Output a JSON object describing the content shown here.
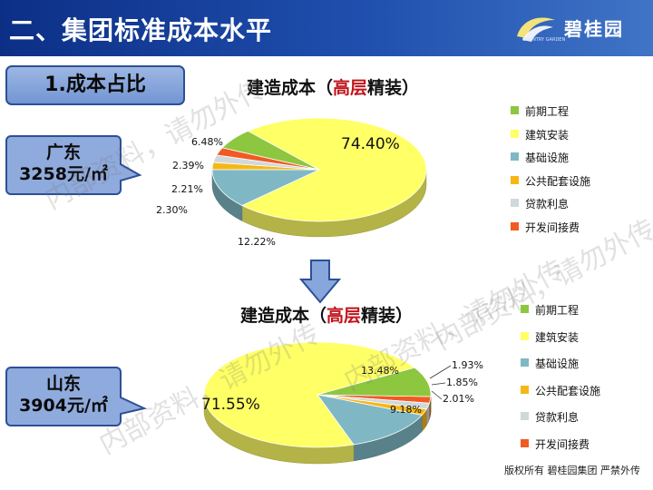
{
  "header": {
    "title": "二、集团标准成本水平"
  },
  "logo": {
    "name": "碧桂园",
    "tagline": "COUNTRY GARDEN"
  },
  "section": {
    "label": "1.成本占比"
  },
  "colors": {
    "green": "#8dc63f",
    "yellow": "#ffff66",
    "teal": "#7fb8c4",
    "orange_gold": "#f6b716",
    "gray": "#d0d8dc",
    "orange": "#f15a22"
  },
  "chart_data": [
    {
      "type": "pie",
      "title_prefix": "建造成本（",
      "title_highlight": "高层",
      "title_suffix": "精装）",
      "region": "广东",
      "unit_cost": "3258元/㎡",
      "legend_position": "right",
      "slices": [
        {
          "name": "前期工程",
          "value": 6.48,
          "label": "6.48%",
          "color": "#8dc63f"
        },
        {
          "name": "建筑安装",
          "value": 74.4,
          "label": "74.40%",
          "color": "#ffff66"
        },
        {
          "name": "基础设施",
          "value": 12.22,
          "label": "12.22%",
          "color": "#7fb8c4"
        },
        {
          "name": "公共配套设施",
          "value": 2.21,
          "label": "2.21%",
          "color": "#f6b716"
        },
        {
          "name": "贷款利息",
          "value": 2.3,
          "label": "2.30%",
          "color": "#d0d8dc"
        },
        {
          "name": "开发间接费",
          "value": 2.39,
          "label": "2.39%",
          "color": "#f15a22"
        }
      ]
    },
    {
      "type": "pie",
      "title_prefix": "建造成本（",
      "title_highlight": "高层",
      "title_suffix": "精装）",
      "region": "山东",
      "unit_cost": "3904元/㎡",
      "legend_position": "right",
      "slices": [
        {
          "name": "前期工程",
          "value": 9.18,
          "label": "9.18%",
          "color": "#8dc63f"
        },
        {
          "name": "建筑安装",
          "value": 71.55,
          "label": "71.55%",
          "color": "#ffff66"
        },
        {
          "name": "基础设施",
          "value": 13.48,
          "label": "13.48%",
          "color": "#7fb8c4"
        },
        {
          "name": "公共配套设施",
          "value": 1.93,
          "label": "1.93%",
          "color": "#f6b716"
        },
        {
          "name": "贷款利息",
          "value": 1.85,
          "label": "1.85%",
          "color": "#d0d8dc"
        },
        {
          "name": "开发间接费",
          "value": 2.01,
          "label": "2.01%",
          "color": "#f15a22"
        }
      ]
    }
  ],
  "footer": {
    "text": "版权所有  碧桂园集团 严禁外传"
  },
  "watermarks": [
    {
      "text": "内部资料，请勿外传"
    },
    {
      "text": "内部资料，请勿外传"
    },
    {
      "text": "内部资料，请勿外传"
    },
    {
      "text": "内部资料，请勿外传"
    }
  ]
}
